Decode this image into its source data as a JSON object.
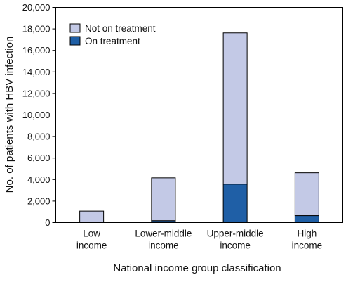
{
  "chart_data": {
    "type": "bar",
    "stacked": true,
    "categories": [
      [
        "Low",
        "income"
      ],
      [
        "Lower-middle",
        "income"
      ],
      [
        "Upper-middle",
        "income"
      ],
      [
        "High",
        "income"
      ]
    ],
    "series": [
      {
        "name": "On treatment",
        "values": [
          60,
          180,
          3580,
          650
        ],
        "color": "#1f5fa6"
      },
      {
        "name": "Not on treatment",
        "values": [
          1010,
          3980,
          14050,
          3980
        ],
        "color": "#c3c9e6"
      }
    ],
    "ylim": [
      0,
      20000
    ],
    "yticks": [
      0,
      2000,
      4000,
      6000,
      8000,
      10000,
      12000,
      14000,
      16000,
      18000,
      20000
    ],
    "ytick_labels": [
      "0",
      "2,000",
      "4,000",
      "6,000",
      "8,000",
      "10,000",
      "12,000",
      "14,000",
      "16,000",
      "18,000",
      "20,000"
    ],
    "ylabel": "No. of patients with HBV infection",
    "xlabel": "National income group classification",
    "legend": {
      "placement": "top-left",
      "entries": [
        {
          "label": "Not on treatment",
          "color": "#c3c9e6"
        },
        {
          "label": "On treatment",
          "color": "#1f5fa6"
        }
      ]
    },
    "grid": false
  }
}
